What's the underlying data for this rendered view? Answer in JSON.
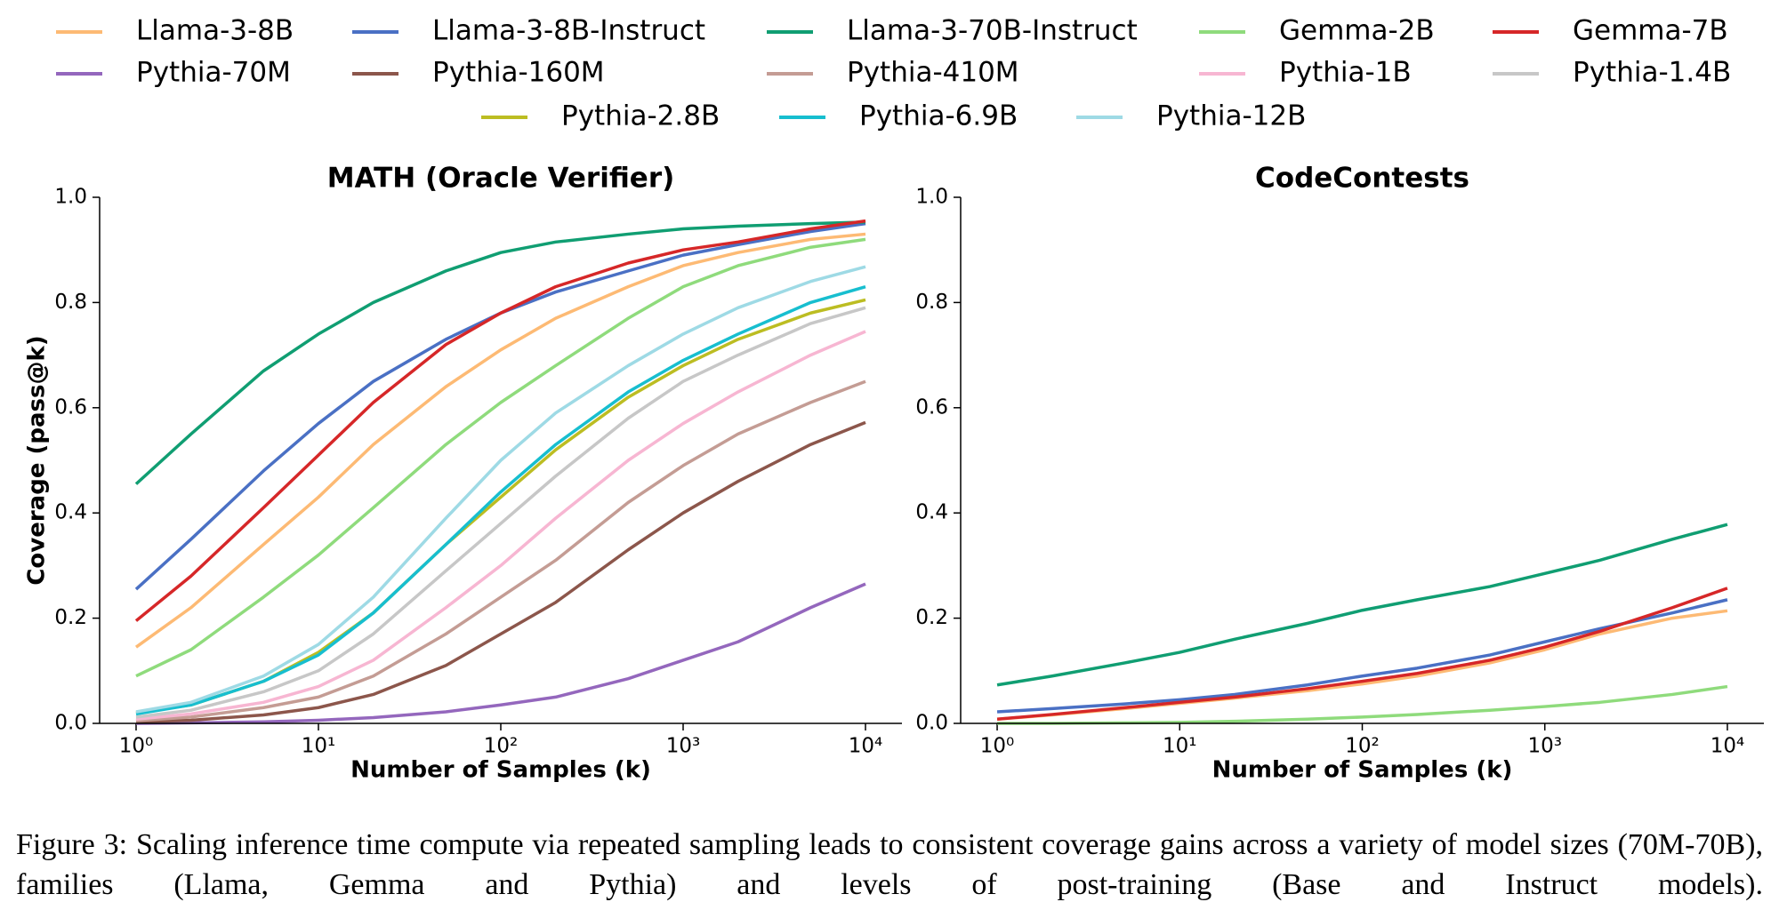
{
  "caption": "Figure 3: Scaling inference time compute via repeated sampling leads to consistent coverage gains across a variety of model sizes (70M-70B), families (Llama, Gemma and Pythia) and levels of post-training (Base and Instruct models).",
  "chart_data": [
    {
      "type": "line",
      "title": "MATH (Oracle Verifier)",
      "x_label": "Number of Samples (k)",
      "y_label": "Coverage (pass@k)",
      "legend": "top",
      "xscale": "log",
      "xlim": [
        0.631,
        15849
      ],
      "ylim": [
        0,
        1
      ],
      "xticks": [
        {
          "value": 1,
          "label": "10⁰"
        },
        {
          "value": 10,
          "label": "10¹"
        },
        {
          "value": 100,
          "label": "10²"
        },
        {
          "value": 1000,
          "label": "10³"
        },
        {
          "value": 10000,
          "label": "10⁴"
        }
      ],
      "yticks": [
        {
          "value": 0,
          "label": "0.0"
        },
        0.2,
        0.4,
        0.6,
        0.8,
        {
          "value": 1,
          "label": "1.0"
        }
      ],
      "x": [
        1,
        2,
        5,
        10,
        20,
        50,
        100,
        200,
        500,
        1000,
        2000,
        5000,
        10000
      ],
      "series": [
        {
          "name": "Llama-3-8B",
          "color": "#fdba74",
          "values": [
            0.145,
            0.22,
            0.34,
            0.43,
            0.53,
            0.64,
            0.71,
            0.77,
            0.83,
            0.87,
            0.895,
            0.92,
            0.93
          ]
        },
        {
          "name": "Llama-3-8B-Instruct",
          "color": "#4a70c4",
          "values": [
            0.255,
            0.35,
            0.48,
            0.57,
            0.65,
            0.73,
            0.78,
            0.82,
            0.86,
            0.89,
            0.91,
            0.935,
            0.95
          ]
        },
        {
          "name": "Llama-3-70B-Instruct",
          "color": "#109e72",
          "values": [
            0.455,
            0.55,
            0.67,
            0.74,
            0.8,
            0.86,
            0.895,
            0.915,
            0.93,
            0.94,
            0.945,
            0.95,
            0.953
          ]
        },
        {
          "name": "Gemma-2B",
          "color": "#8fdb7c",
          "values": [
            0.09,
            0.14,
            0.24,
            0.32,
            0.41,
            0.53,
            0.61,
            0.68,
            0.77,
            0.83,
            0.87,
            0.905,
            0.92
          ]
        },
        {
          "name": "Gemma-7B",
          "color": "#d62728",
          "values": [
            0.195,
            0.28,
            0.41,
            0.51,
            0.61,
            0.72,
            0.78,
            0.83,
            0.875,
            0.9,
            0.915,
            0.94,
            0.955
          ]
        },
        {
          "name": "Pythia-70M",
          "color": "#9467bd",
          "values": [
            0,
            0.001,
            0.003,
            0.006,
            0.011,
            0.022,
            0.035,
            0.05,
            0.085,
            0.12,
            0.155,
            0.22,
            0.265
          ]
        },
        {
          "name": "Pythia-160M",
          "color": "#8c564b",
          "values": [
            0.003,
            0.006,
            0.016,
            0.03,
            0.055,
            0.11,
            0.17,
            0.23,
            0.33,
            0.4,
            0.46,
            0.53,
            0.572
          ]
        },
        {
          "name": "Pythia-410M",
          "color": "#c49c94",
          "values": [
            0.005,
            0.012,
            0.03,
            0.05,
            0.09,
            0.17,
            0.24,
            0.31,
            0.42,
            0.49,
            0.55,
            0.61,
            0.65
          ]
        },
        {
          "name": "Pythia-1B",
          "color": "#f7b6d2",
          "values": [
            0.008,
            0.018,
            0.04,
            0.07,
            0.12,
            0.22,
            0.3,
            0.39,
            0.5,
            0.57,
            0.63,
            0.7,
            0.745
          ]
        },
        {
          "name": "Pythia-1.4B",
          "color": "#c7c7c7",
          "values": [
            0.012,
            0.025,
            0.06,
            0.1,
            0.17,
            0.29,
            0.38,
            0.47,
            0.58,
            0.65,
            0.7,
            0.76,
            0.79
          ]
        },
        {
          "name": "Pythia-2.8B",
          "color": "#bcbd22",
          "values": [
            0.02,
            0.035,
            0.08,
            0.135,
            0.21,
            0.34,
            0.43,
            0.52,
            0.62,
            0.68,
            0.73,
            0.78,
            0.805
          ]
        },
        {
          "name": "Pythia-6.9B",
          "color": "#17becf",
          "values": [
            0.018,
            0.035,
            0.08,
            0.13,
            0.21,
            0.34,
            0.44,
            0.53,
            0.63,
            0.69,
            0.74,
            0.8,
            0.83
          ]
        },
        {
          "name": "Pythia-12B",
          "color": "#9edae5",
          "values": [
            0.022,
            0.04,
            0.09,
            0.15,
            0.24,
            0.39,
            0.5,
            0.59,
            0.68,
            0.74,
            0.79,
            0.84,
            0.868
          ]
        }
      ]
    },
    {
      "type": "line",
      "title": "CodeContests",
      "x_label": "Number of Samples (k)",
      "xscale": "log",
      "xlim": [
        0.631,
        15849
      ],
      "ylim": [
        0,
        1
      ],
      "xticks": [
        {
          "value": 1,
          "label": "10⁰"
        },
        {
          "value": 10,
          "label": "10¹"
        },
        {
          "value": 100,
          "label": "10²"
        },
        {
          "value": 1000,
          "label": "10³"
        },
        {
          "value": 10000,
          "label": "10⁴"
        }
      ],
      "yticks": [
        {
          "value": 0,
          "label": "0.0"
        },
        0.2,
        0.4,
        0.6,
        0.8,
        {
          "value": 1,
          "label": "1.0"
        }
      ],
      "x": [
        1,
        2,
        5,
        10,
        20,
        50,
        100,
        200,
        500,
        1000,
        2000,
        5000,
        10000
      ],
      "series": [
        {
          "name": "Llama-3-8B",
          "color": "#fdba74",
          "values": [
            0.008,
            0.016,
            0.028,
            0.038,
            0.048,
            0.062,
            0.075,
            0.09,
            0.115,
            0.14,
            0.17,
            0.2,
            0.214
          ]
        },
        {
          "name": "Llama-3-8B-Instruct",
          "color": "#4a70c4",
          "values": [
            0.022,
            0.028,
            0.037,
            0.045,
            0.055,
            0.073,
            0.09,
            0.105,
            0.13,
            0.155,
            0.18,
            0.21,
            0.235
          ]
        },
        {
          "name": "Llama-3-70B-Instruct",
          "color": "#109e72",
          "values": [
            0.073,
            0.09,
            0.115,
            0.135,
            0.16,
            0.19,
            0.215,
            0.235,
            0.26,
            0.285,
            0.31,
            0.35,
            0.378
          ]
        },
        {
          "name": "Gemma-2B",
          "color": "#8fdb7c",
          "values": [
            0,
            0,
            0.001,
            0.002,
            0.004,
            0.008,
            0.012,
            0.017,
            0.025,
            0.032,
            0.04,
            0.055,
            0.07
          ]
        },
        {
          "name": "Gemma-7B",
          "color": "#d62728",
          "values": [
            0.008,
            0.017,
            0.03,
            0.04,
            0.05,
            0.066,
            0.08,
            0.095,
            0.12,
            0.145,
            0.175,
            0.22,
            0.257
          ]
        }
      ]
    }
  ]
}
